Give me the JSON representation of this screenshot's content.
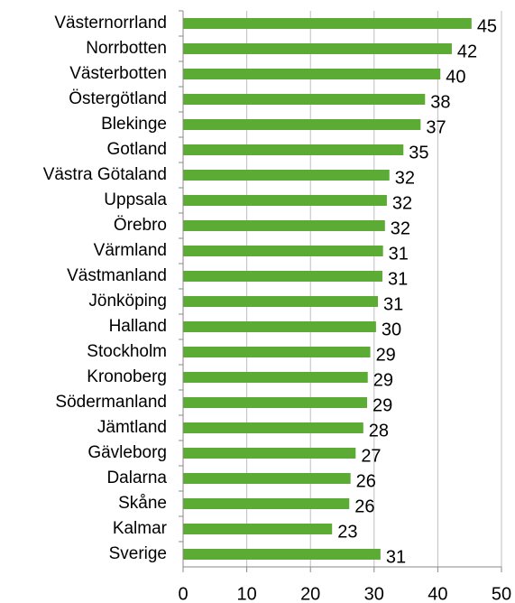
{
  "chart_data": {
    "type": "barh",
    "categories": [
      "Västernorrland",
      "Norrbotten",
      "Västerbotten",
      "Östergötland",
      "Blekinge",
      "Gotland",
      "Västra Götaland",
      "Uppsala",
      "Örebro",
      "Värmland",
      "Västmanland",
      "Jönköping",
      "Halland",
      "Stockholm",
      "Kronoberg",
      "Södermanland",
      "Jämtland",
      "Gävleborg",
      "Dalarna",
      "Skåne",
      "Kalmar",
      "Sverige"
    ],
    "values": [
      45.3,
      42.2,
      40.4,
      38.0,
      37.3,
      34.6,
      32.4,
      32.0,
      31.7,
      31.4,
      31.3,
      30.6,
      30.3,
      29.4,
      29.0,
      28.9,
      28.3,
      27.1,
      26.3,
      26.1,
      23.4,
      31.0
    ],
    "value_labels": [
      "45",
      "42",
      "40",
      "38",
      "37",
      "35",
      "32",
      "32",
      "32",
      "31",
      "31",
      "31",
      "30",
      "29",
      "29",
      "29",
      "28",
      "27",
      "26",
      "26",
      "23",
      "31"
    ],
    "color": "#5cab34",
    "xlim": [
      0,
      50
    ],
    "xticks": [
      0,
      10,
      20,
      30,
      40,
      50
    ],
    "grid": true
  }
}
